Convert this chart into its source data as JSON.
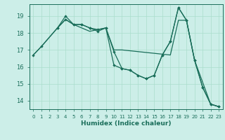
{
  "xlabel": "Humidex (Indice chaleur)",
  "bg_color": "#cceee8",
  "grid_color": "#aaddcc",
  "line_color": "#1a6e5a",
  "xlim": [
    -0.5,
    23.5
  ],
  "ylim": [
    13.5,
    19.7
  ],
  "yticks": [
    14,
    15,
    16,
    17,
    18,
    19
  ],
  "xticks": [
    0,
    1,
    2,
    3,
    4,
    5,
    6,
    7,
    8,
    9,
    10,
    11,
    12,
    13,
    14,
    15,
    16,
    17,
    18,
    19,
    20,
    21,
    22,
    23
  ],
  "line1_marked": {
    "x": [
      0,
      1,
      3,
      4,
      5,
      6,
      7,
      8,
      9,
      10,
      11,
      12,
      13,
      14,
      15,
      16,
      17,
      18,
      19,
      20,
      21,
      22,
      23
    ],
    "y": [
      16.7,
      17.2,
      18.3,
      19.0,
      18.5,
      18.5,
      18.3,
      18.2,
      18.3,
      16.1,
      15.9,
      15.8,
      15.5,
      15.3,
      15.5,
      16.7,
      17.5,
      19.5,
      18.75,
      16.4,
      14.8,
      13.8,
      13.65
    ]
  },
  "line2_marked": {
    "x": [
      3,
      4,
      5,
      6,
      7,
      8,
      9,
      10,
      11,
      12,
      13,
      14,
      15,
      16,
      17,
      18,
      19,
      20,
      21,
      22,
      23
    ],
    "y": [
      18.3,
      18.8,
      18.5,
      18.5,
      18.3,
      18.1,
      18.3,
      16.9,
      15.9,
      15.8,
      15.5,
      15.3,
      15.5,
      16.7,
      17.5,
      19.5,
      18.75,
      16.4,
      14.8,
      13.8,
      13.65
    ]
  },
  "line3_flat": {
    "x": [
      0,
      1,
      3,
      4,
      5,
      6,
      7,
      8,
      9,
      10,
      11,
      12,
      13,
      14,
      15,
      16,
      17,
      18,
      19,
      20,
      22,
      23
    ],
    "y": [
      16.7,
      17.2,
      18.3,
      18.8,
      18.5,
      18.3,
      18.1,
      18.2,
      18.3,
      17.0,
      17.0,
      16.95,
      16.9,
      16.85,
      16.8,
      16.75,
      16.7,
      18.75,
      18.75,
      16.4,
      13.8,
      13.65
    ]
  }
}
